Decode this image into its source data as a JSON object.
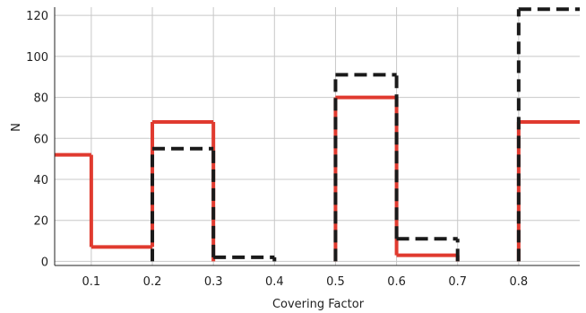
{
  "chart_data": {
    "type": "bar",
    "xlabel": "Covering Factor",
    "ylabel": "N",
    "xlim": [
      0.04,
      0.9
    ],
    "ylim": [
      -2,
      124
    ],
    "xticks": [
      0.1,
      0.2,
      0.3,
      0.4,
      0.5,
      0.6,
      0.7,
      0.8
    ],
    "xtick_labels": [
      "0.1",
      "0.2",
      "0.3",
      "0.4",
      "0.5",
      "0.6",
      "0.7",
      "0.8"
    ],
    "yticks": [
      0,
      20,
      40,
      60,
      80,
      100,
      120
    ],
    "ytick_labels": [
      "0",
      "20",
      "40",
      "60",
      "80",
      "100",
      "120"
    ],
    "grid": true,
    "bin_edges": [
      0.0,
      0.1,
      0.2,
      0.3,
      0.4,
      0.5,
      0.6,
      0.7,
      0.8,
      0.9
    ],
    "series": [
      {
        "style": "solid",
        "color": "#e03a2f",
        "values": [
          52,
          7,
          68,
          0,
          0,
          80,
          3,
          0,
          68
        ]
      },
      {
        "style": "dashed",
        "color": "#1a1a1a",
        "values": [
          0,
          0,
          55,
          2,
          0,
          91,
          11,
          0,
          123
        ]
      }
    ]
  }
}
